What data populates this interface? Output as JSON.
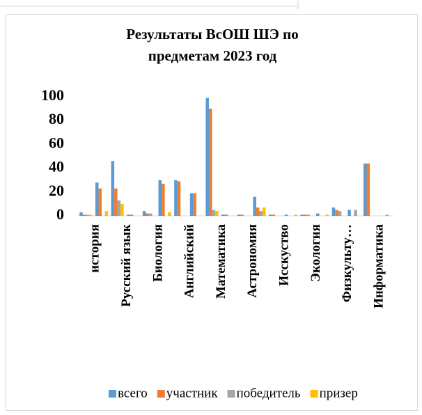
{
  "chart_data": {
    "type": "bar",
    "title": "Результаты ВсОШ ШЭ по предметам 2023 год",
    "categories": [
      "история",
      null,
      "Русский язык",
      null,
      "Биология",
      null,
      "Английский",
      null,
      "Математика",
      null,
      "Астрономия",
      null,
      "Исскуство",
      null,
      "Экология",
      null,
      "Физкульту…",
      null,
      "Информатика",
      null
    ],
    "series": [
      {
        "name": "всего",
        "color": "#5b9bd5",
        "values": [
          3,
          28,
          46,
          1,
          4,
          30,
          30,
          19,
          99,
          1,
          1,
          16,
          1,
          1,
          1,
          2,
          7,
          5,
          44,
          0
        ]
      },
      {
        "name": "участник",
        "color": "#ed7d31",
        "values": [
          1,
          23,
          23,
          1,
          2,
          27,
          29,
          19,
          90,
          1,
          1,
          7,
          1,
          0,
          1,
          0,
          5,
          0,
          44,
          0
        ]
      },
      {
        "name": "победитель",
        "color": "#a5a5a5",
        "values": [
          1,
          0,
          13,
          0,
          2,
          0,
          0,
          0,
          5,
          0,
          0,
          4,
          0,
          0,
          1,
          0,
          4,
          5,
          0,
          1
        ]
      },
      {
        "name": "призер",
        "color": "#ffc000",
        "values": [
          1,
          4,
          10,
          0,
          0,
          3,
          0,
          0,
          4,
          0,
          0,
          7,
          0,
          1,
          0,
          1,
          0,
          0,
          0,
          0
        ]
      }
    ],
    "ylim": [
      0,
      100
    ],
    "yticks": [
      0,
      20,
      40,
      60,
      80,
      100
    ],
    "grid": false,
    "legend": "bottom"
  }
}
